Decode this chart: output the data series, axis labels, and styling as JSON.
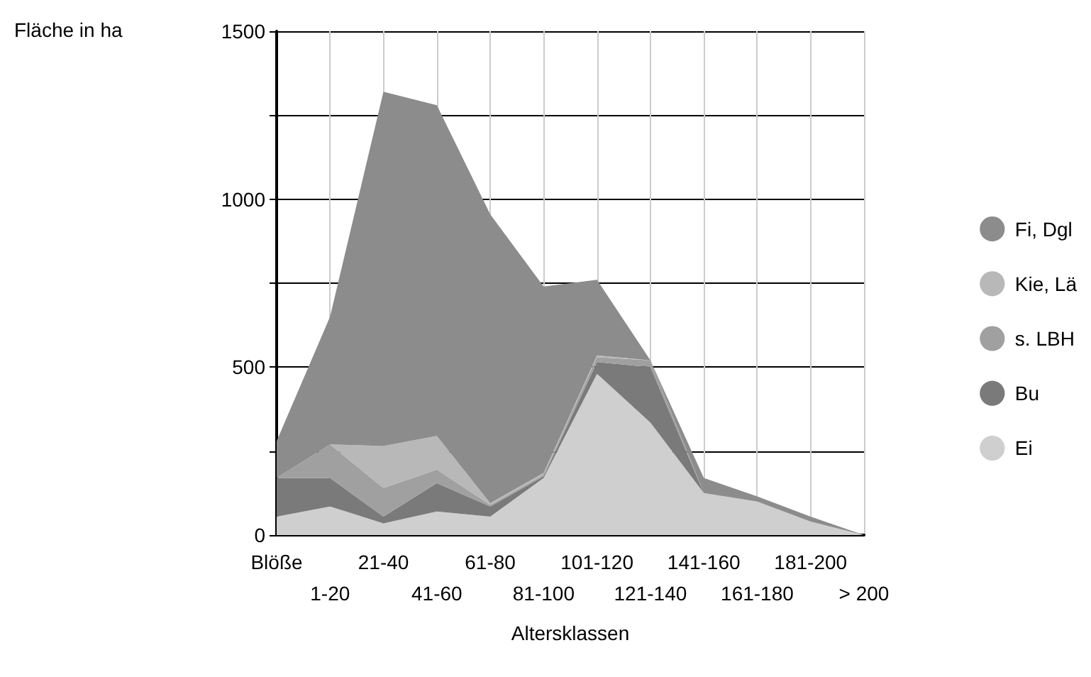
{
  "chart_data": {
    "type": "area",
    "stacked": true,
    "xlabel": "Altersklassen",
    "ylabel": "Fläche in ha",
    "categories": [
      "Blöße",
      "1-20",
      "21-40",
      "41-60",
      "61-80",
      "81-100",
      "101-120",
      "121-140",
      "141-160",
      "161-180",
      "181-200",
      "> 200"
    ],
    "series": [
      {
        "name": "Ei",
        "color": "#cfcfcf",
        "values": [
          55,
          85,
          35,
          70,
          55,
          170,
          480,
          335,
          125,
          100,
          40,
          0
        ]
      },
      {
        "name": "Bu",
        "color": "#7a7a7a",
        "values": [
          115,
          85,
          20,
          85,
          30,
          5,
          35,
          165,
          0,
          0,
          0,
          0
        ]
      },
      {
        "name": "s. LBH",
        "color": "#a0a0a0",
        "values": [
          0,
          100,
          85,
          40,
          5,
          5,
          15,
          20,
          0,
          0,
          0,
          0
        ]
      },
      {
        "name": "Kie, Lä",
        "color": "#b8b8b8",
        "values": [
          0,
          0,
          125,
          100,
          5,
          5,
          5,
          0,
          0,
          0,
          0,
          0
        ]
      },
      {
        "name": "Fi, Dgl",
        "color": "#8c8c8c",
        "values": [
          110,
          380,
          1055,
          985,
          860,
          555,
          225,
          0,
          45,
          15,
          15,
          0
        ]
      }
    ],
    "ylim": [
      0,
      1500
    ],
    "yticks": [
      0,
      {
        "value": 250,
        "label": null
      },
      500,
      {
        "value": 750,
        "label": null
      },
      1000,
      {
        "value": 1250,
        "label": null
      },
      1500
    ],
    "grid": true,
    "legend": "right"
  }
}
